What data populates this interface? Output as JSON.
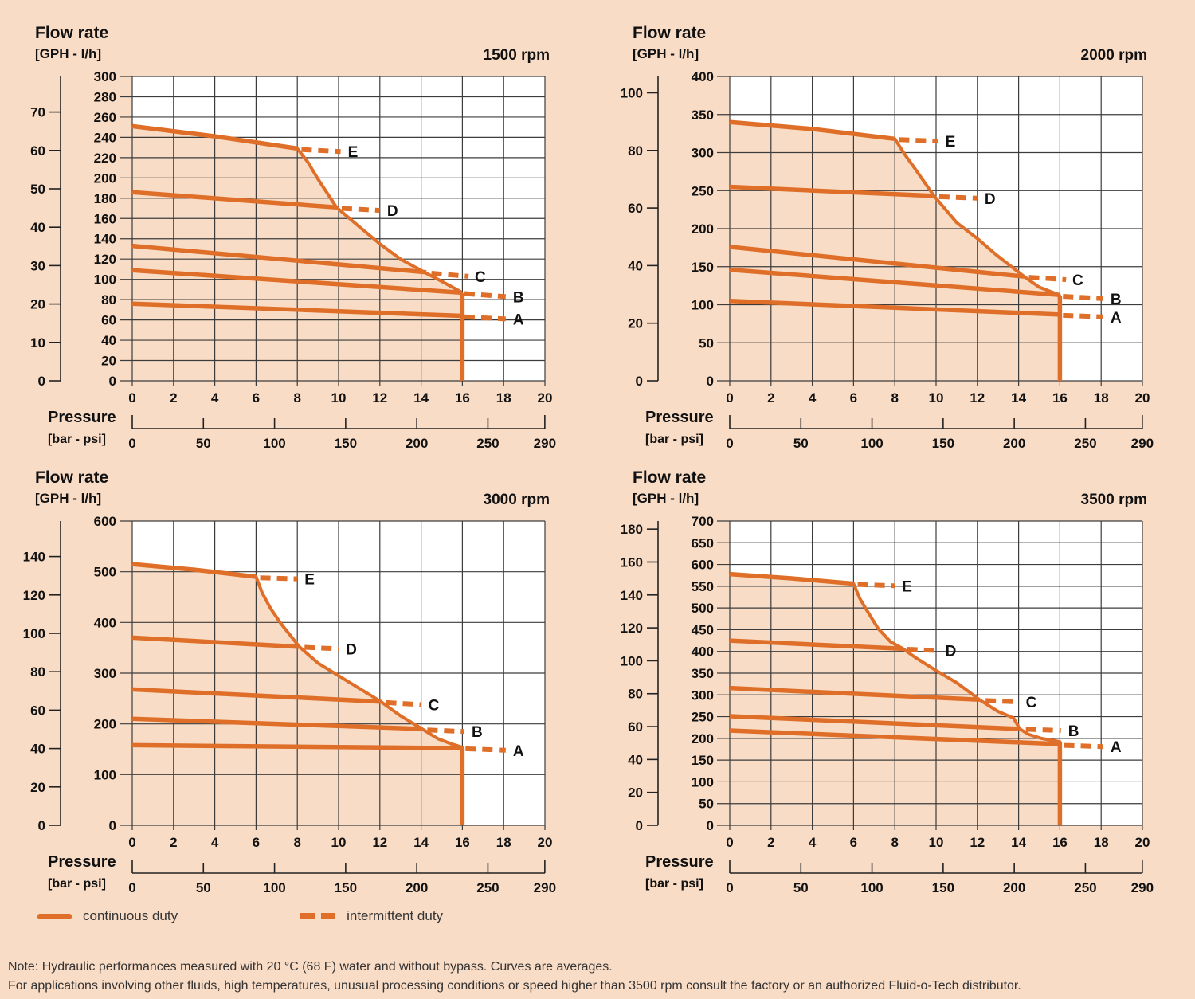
{
  "colors": {
    "background": "#f9dcc6",
    "plot": "#ffffff",
    "shade": "#f8dcc5",
    "curve": "#df6e28",
    "grid": "#3c3c3c",
    "axis": "#222222",
    "text": "#111111",
    "note_text": "#333333"
  },
  "axis_labels": {
    "y_title": "Flow rate",
    "y_units": "[GPH - l/h]",
    "x_title": "Pressure",
    "x_units": "[bar - psi]"
  },
  "legend": {
    "continuous": "continuous duty",
    "intermittent": "intermittent duty"
  },
  "note": {
    "line1": "Note: Hydraulic performances measured with 20 °C (68 F) water and without bypass. Curves are averages.",
    "line2": "For applications involving other fluids, high temperatures, unusual processing conditions or speed higher than 3500 rpm consult the factory or an authorized Fluid-o-Tech distributor."
  },
  "chart_data": [
    {
      "type": "line",
      "title": "1500 rpm",
      "xlabel": "Pressure [bar - psi]",
      "ylabel": "Flow rate [GPH - l/h]",
      "x_bar": {
        "min": 0,
        "max": 20,
        "step": 2
      },
      "y_lh": {
        "min": 0,
        "max": 300,
        "step": 20
      },
      "gph_ticks": {
        "max": 70,
        "step": 10
      },
      "psi_ticks": [
        0,
        50,
        100,
        150,
        200,
        250,
        290
      ],
      "series": [
        {
          "name": "A",
          "solid": [
            [
              0,
              76
            ],
            [
              16,
              64
            ]
          ],
          "dashed": [
            [
              16.1,
              63
            ],
            [
              18.1,
              61
            ]
          ],
          "label_at": [
            18.45,
            61
          ]
        },
        {
          "name": "B",
          "solid": [
            [
              0,
              109
            ],
            [
              15.9,
              87
            ]
          ],
          "dashed": [
            [
              16.1,
              86
            ],
            [
              18.1,
              83
            ]
          ],
          "label_at": [
            18.45,
            83
          ]
        },
        {
          "name": "C",
          "solid": [
            [
              0,
              133
            ],
            [
              14.25,
              107
            ]
          ],
          "dashed": [
            [
              14.5,
              106
            ],
            [
              16.3,
              103
            ]
          ],
          "label_at": [
            16.6,
            103
          ]
        },
        {
          "name": "D",
          "solid": [
            [
              0,
              186
            ],
            [
              9.9,
              171
            ]
          ],
          "dashed": [
            [
              10.15,
              170
            ],
            [
              12.0,
              168
            ]
          ],
          "label_at": [
            12.35,
            168
          ]
        },
        {
          "name": "E",
          "solid": [
            [
              0,
              251
            ],
            [
              4,
              241
            ],
            [
              8,
              229
            ]
          ],
          "dashed": [
            [
              8.2,
              228
            ],
            [
              10.1,
              226
            ]
          ],
          "label_at": [
            10.45,
            226
          ]
        }
      ],
      "envelope": [
        [
          8,
          229
        ],
        [
          8.5,
          216
        ],
        [
          9,
          199
        ],
        [
          9.9,
          171
        ],
        [
          11,
          152
        ],
        [
          12,
          135
        ],
        [
          13,
          120
        ],
        [
          14.25,
          106
        ],
        [
          15,
          98
        ],
        [
          15.9,
          88
        ],
        [
          16,
          85
        ]
      ]
    },
    {
      "type": "line",
      "title": "2000 rpm",
      "xlabel": "Pressure [bar - psi]",
      "ylabel": "Flow rate [GPH - l/h]",
      "x_bar": {
        "min": 0,
        "max": 20,
        "step": 2
      },
      "y_lh": {
        "min": 0,
        "max": 400,
        "step": 50
      },
      "gph_ticks": {
        "max": 100,
        "step": 20
      },
      "psi_ticks": [
        0,
        50,
        100,
        150,
        200,
        250,
        290
      ],
      "series": [
        {
          "name": "A",
          "solid": [
            [
              0,
              105
            ],
            [
              16,
              87
            ]
          ],
          "dashed": [
            [
              16.15,
              86
            ],
            [
              18.1,
              84
            ]
          ],
          "label_at": [
            18.45,
            84
          ]
        },
        {
          "name": "B",
          "solid": [
            [
              0,
              146
            ],
            [
              15.96,
              113
            ]
          ],
          "dashed": [
            [
              16.15,
              111
            ],
            [
              18.1,
              108
            ]
          ],
          "label_at": [
            18.45,
            108
          ]
        },
        {
          "name": "C",
          "solid": [
            [
              0,
              176
            ],
            [
              14.27,
              137
            ]
          ],
          "dashed": [
            [
              14.5,
              136
            ],
            [
              16.3,
              133
            ]
          ],
          "label_at": [
            16.6,
            133
          ]
        },
        {
          "name": "D",
          "solid": [
            [
              0,
              255
            ],
            [
              9.9,
              243
            ]
          ],
          "dashed": [
            [
              10.15,
              242
            ],
            [
              12.0,
              240
            ]
          ],
          "label_at": [
            12.35,
            240
          ]
        },
        {
          "name": "E",
          "solid": [
            [
              0,
              340
            ],
            [
              4,
              331
            ],
            [
              8,
              318
            ]
          ],
          "dashed": [
            [
              8.2,
              317
            ],
            [
              10.1,
              315
            ]
          ],
          "label_at": [
            10.45,
            315
          ]
        }
      ],
      "envelope": [
        [
          8,
          318
        ],
        [
          8.5,
          297
        ],
        [
          9,
          278
        ],
        [
          9.9,
          243
        ],
        [
          11,
          208
        ],
        [
          12,
          187
        ],
        [
          12.9,
          166
        ],
        [
          14.27,
          137
        ],
        [
          15,
          123
        ],
        [
          15.96,
          113
        ],
        [
          16,
          111
        ]
      ]
    },
    {
      "type": "line",
      "title": "3000 rpm",
      "xlabel": "Pressure [bar - psi]",
      "ylabel": "Flow rate [GPH - l/h]",
      "x_bar": {
        "min": 0,
        "max": 20,
        "step": 2
      },
      "y_lh": {
        "min": 0,
        "max": 600,
        "step": 100
      },
      "gph_ticks": {
        "max": 140,
        "step": 20
      },
      "psi_ticks": [
        0,
        50,
        100,
        150,
        200,
        250,
        290
      ],
      "series": [
        {
          "name": "A",
          "solid": [
            [
              0,
              158
            ],
            [
              16,
              152
            ]
          ],
          "dashed": [
            [
              16.15,
              151
            ],
            [
              18.1,
              148
            ]
          ],
          "label_at": [
            18.45,
            148
          ]
        },
        {
          "name": "B",
          "solid": [
            [
              0,
              210
            ],
            [
              14.05,
              190
            ]
          ],
          "dashed": [
            [
              14.3,
              188
            ],
            [
              16.1,
              185
            ]
          ],
          "label_at": [
            16.45,
            185
          ]
        },
        {
          "name": "C",
          "solid": [
            [
              0,
              268
            ],
            [
              12.05,
              244
            ]
          ],
          "dashed": [
            [
              12.3,
              242
            ],
            [
              14.0,
              238
            ]
          ],
          "label_at": [
            14.35,
            238
          ]
        },
        {
          "name": "D",
          "solid": [
            [
              0,
              370
            ],
            [
              8.1,
              352
            ]
          ],
          "dashed": [
            [
              8.35,
              351
            ],
            [
              10.0,
              348
            ]
          ],
          "label_at": [
            10.35,
            348
          ]
        },
        {
          "name": "E",
          "solid": [
            [
              0,
              515
            ],
            [
              3,
              504
            ],
            [
              6,
              490
            ]
          ],
          "dashed": [
            [
              6.2,
              488
            ],
            [
              8.0,
              486
            ]
          ],
          "label_at": [
            8.35,
            486
          ]
        }
      ],
      "envelope": [
        [
          6,
          490
        ],
        [
          6.3,
          458
        ],
        [
          6.7,
          428
        ],
        [
          7.2,
          398
        ],
        [
          8.1,
          352
        ],
        [
          9,
          320
        ],
        [
          10,
          295
        ],
        [
          11,
          270
        ],
        [
          12.05,
          244
        ],
        [
          13,
          216
        ],
        [
          14.05,
          190
        ],
        [
          14.8,
          171
        ],
        [
          15.5,
          160
        ],
        [
          16,
          154
        ]
      ]
    },
    {
      "type": "line",
      "title": "3500 rpm",
      "xlabel": "Pressure [bar - psi]",
      "ylabel": "Flow rate [GPH - l/h]",
      "x_bar": {
        "min": 0,
        "max": 20,
        "step": 2
      },
      "y_lh": {
        "min": 0,
        "max": 700,
        "step": 50
      },
      "gph_ticks": {
        "max": 180,
        "step": 20
      },
      "psi_ticks": [
        0,
        50,
        100,
        150,
        200,
        250,
        290
      ],
      "series": [
        {
          "name": "A",
          "solid": [
            [
              0,
              218
            ],
            [
              16,
              187
            ]
          ],
          "dashed": [
            [
              16.2,
              184
            ],
            [
              18.1,
              181
            ]
          ],
          "label_at": [
            18.45,
            181
          ]
        },
        {
          "name": "B",
          "solid": [
            [
              0,
              251
            ],
            [
              14.0,
              222
            ]
          ],
          "dashed": [
            [
              14.35,
              221
            ],
            [
              16.05,
              218
            ]
          ],
          "label_at": [
            16.4,
            218
          ]
        },
        {
          "name": "C",
          "solid": [
            [
              0,
              316
            ],
            [
              12.1,
              289
            ]
          ],
          "dashed": [
            [
              12.4,
              287
            ],
            [
              14.0,
              284
            ]
          ],
          "label_at": [
            14.35,
            284
          ]
        },
        {
          "name": "D",
          "solid": [
            [
              0,
              425
            ],
            [
              8.4,
              406
            ]
          ],
          "dashed": [
            [
              8.6,
              405
            ],
            [
              10.1,
              402
            ]
          ],
          "label_at": [
            10.45,
            402
          ]
        },
        {
          "name": "E",
          "solid": [
            [
              0,
              578
            ],
            [
              3,
              568
            ],
            [
              6,
              556
            ]
          ],
          "dashed": [
            [
              6.2,
              554
            ],
            [
              8.0,
              551
            ]
          ],
          "label_at": [
            8.35,
            551
          ]
        }
      ],
      "envelope": [
        [
          6,
          556
        ],
        [
          6.3,
          522
        ],
        [
          6.6,
          498
        ],
        [
          7.2,
          452
        ],
        [
          7.8,
          422
        ],
        [
          8.4,
          406
        ],
        [
          9,
          386
        ],
        [
          10,
          356
        ],
        [
          11,
          328
        ],
        [
          11.8,
          300
        ],
        [
          12.1,
          289
        ],
        [
          13,
          262
        ],
        [
          13.75,
          247
        ],
        [
          13.9,
          235
        ],
        [
          14.05,
          222
        ],
        [
          14.5,
          209
        ],
        [
          15.1,
          200
        ],
        [
          15.8,
          194
        ],
        [
          16,
          192
        ]
      ]
    }
  ]
}
